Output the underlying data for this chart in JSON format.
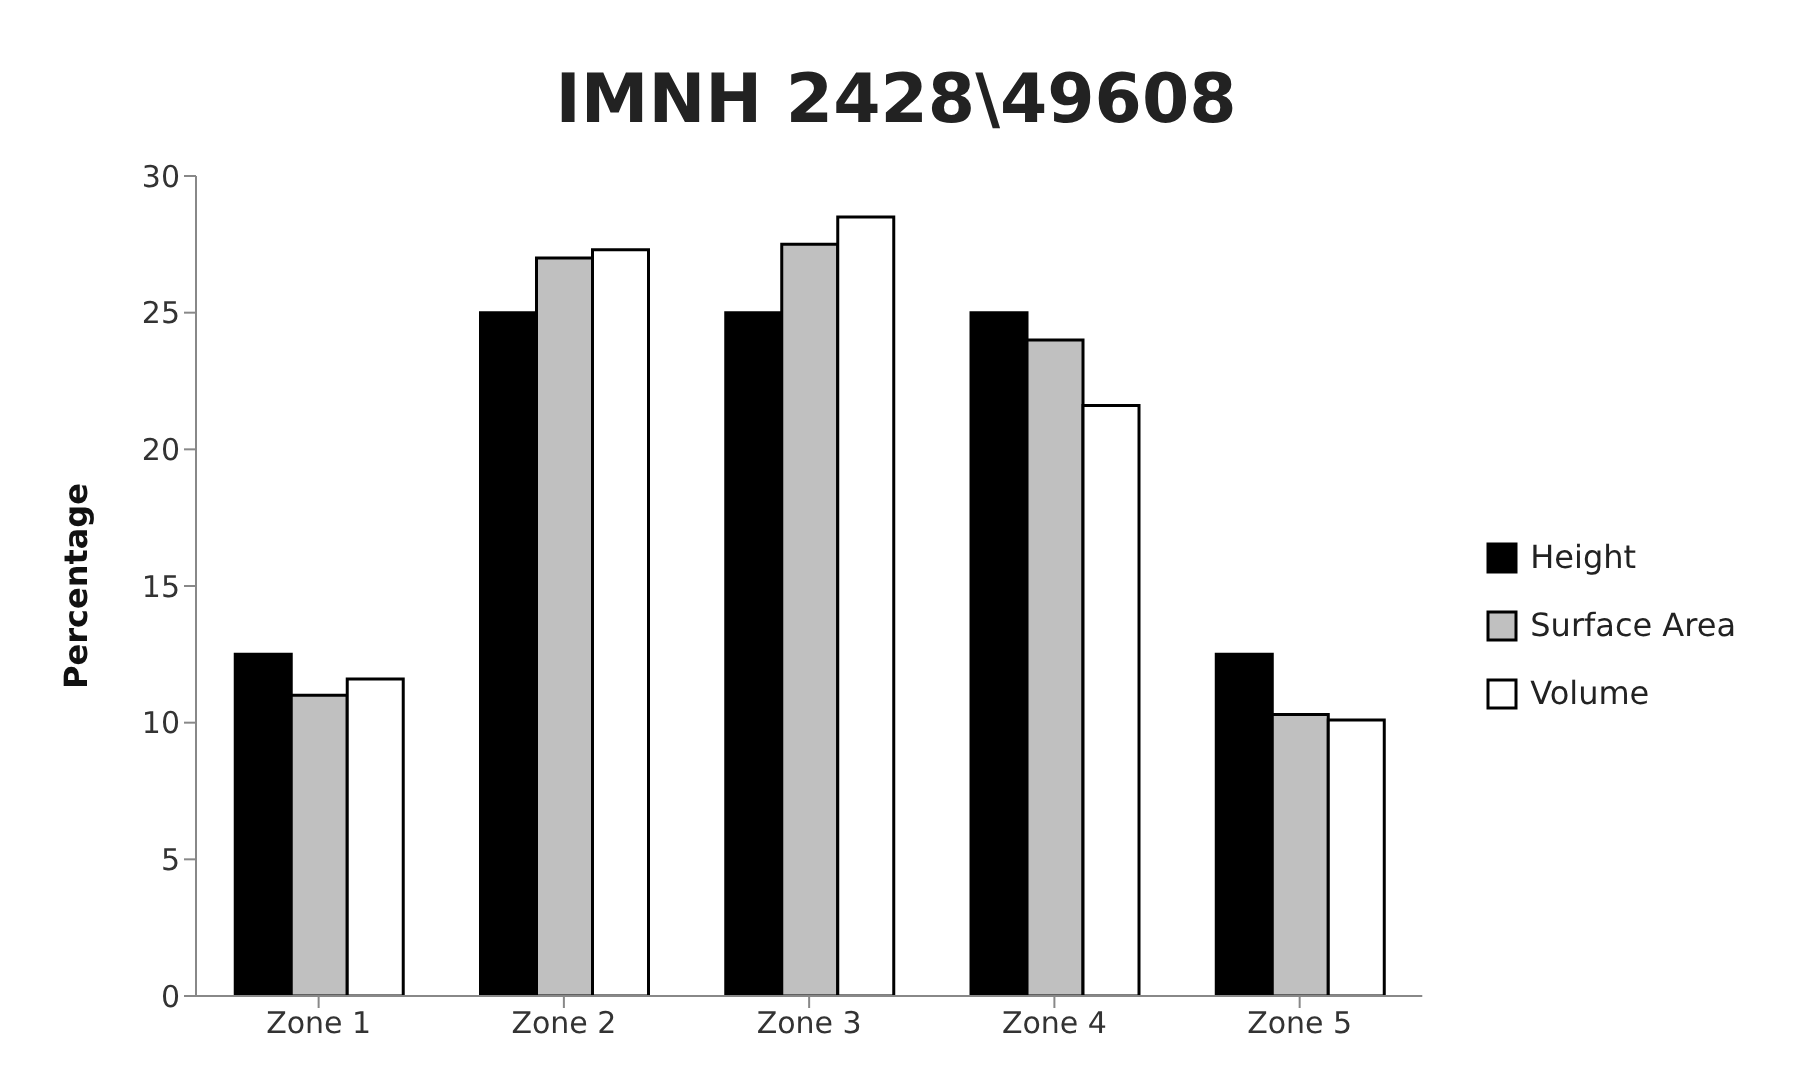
{
  "chart_data": {
    "type": "bar",
    "title": "IMNH 2428\\49608",
    "ylabel": "Percentage",
    "categories": [
      "Zone 1",
      "Zone 2",
      "Zone 3",
      "Zone 4",
      "Zone 5"
    ],
    "series": [
      {
        "name": "Height",
        "color": "#000000",
        "values": [
          12.5,
          25,
          25,
          25,
          12.5
        ]
      },
      {
        "name": "Surface Area",
        "color": "#c0c0c0",
        "values": [
          11.0,
          27.0,
          27.5,
          24.0,
          10.3
        ]
      },
      {
        "name": "Volume",
        "color": "#ffffff",
        "values": [
          11.6,
          27.3,
          28.5,
          21.6,
          10.1
        ]
      }
    ],
    "ylim": [
      0,
      30
    ],
    "yticks": [
      0,
      5,
      10,
      15,
      20,
      25,
      30
    ],
    "grid": false,
    "legend": "right"
  }
}
